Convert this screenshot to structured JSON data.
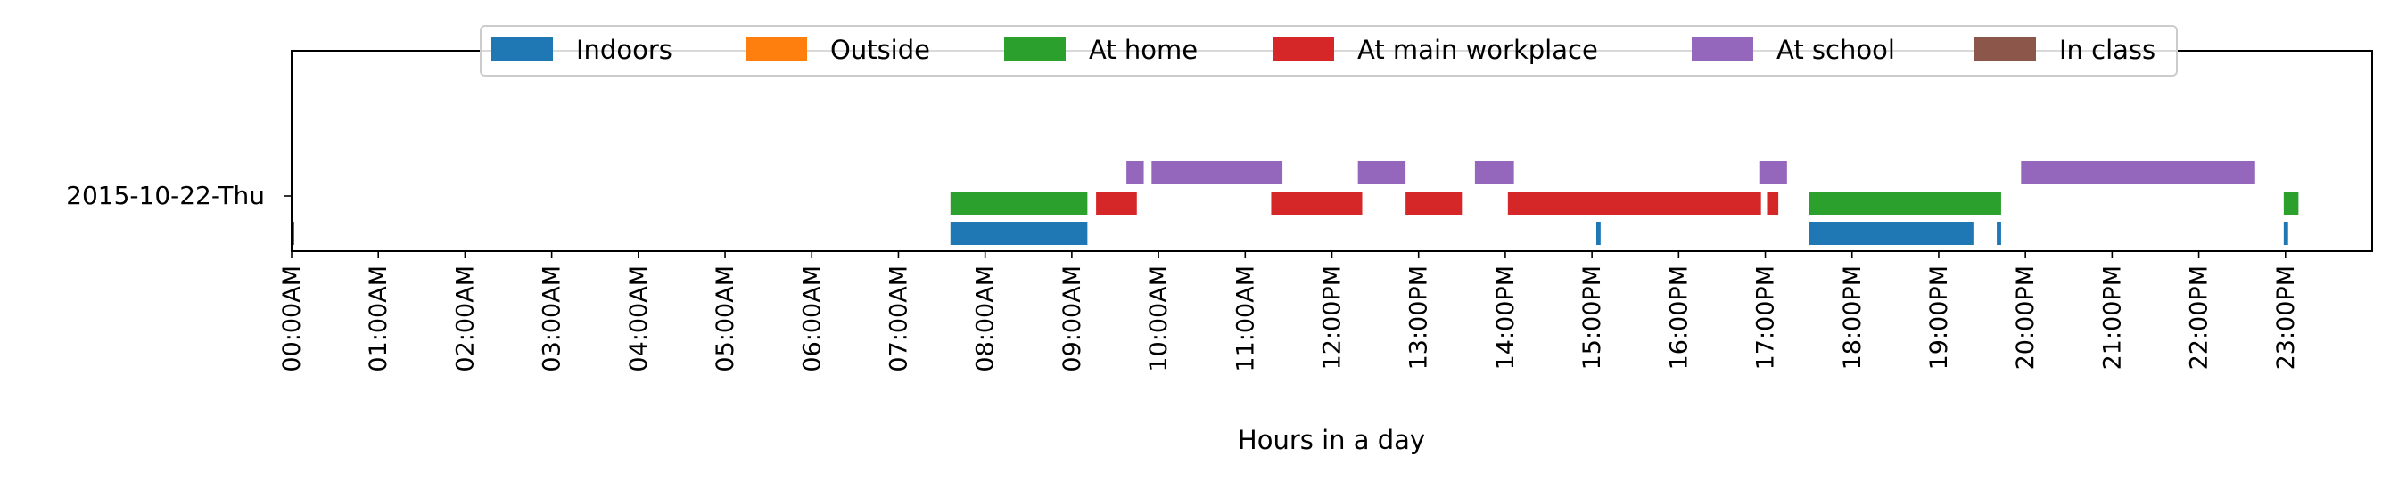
{
  "chart_data": {
    "type": "timeline",
    "xlabel": "Hours in a day",
    "xlim": [
      0,
      24
    ],
    "row_label": "2015-10-22-Thu",
    "x_ticks": [
      {
        "value": 0,
        "label": "00:00AM"
      },
      {
        "value": 1,
        "label": "01:00AM"
      },
      {
        "value": 2,
        "label": "02:00AM"
      },
      {
        "value": 3,
        "label": "03:00AM"
      },
      {
        "value": 4,
        "label": "04:00AM"
      },
      {
        "value": 5,
        "label": "05:00AM"
      },
      {
        "value": 6,
        "label": "06:00AM"
      },
      {
        "value": 7,
        "label": "07:00AM"
      },
      {
        "value": 8,
        "label": "08:00AM"
      },
      {
        "value": 9,
        "label": "09:00AM"
      },
      {
        "value": 10,
        "label": "10:00AM"
      },
      {
        "value": 11,
        "label": "11:00AM"
      },
      {
        "value": 12,
        "label": "12:00PM"
      },
      {
        "value": 13,
        "label": "13:00PM"
      },
      {
        "value": 14,
        "label": "14:00PM"
      },
      {
        "value": 15,
        "label": "15:00PM"
      },
      {
        "value": 16,
        "label": "16:00PM"
      },
      {
        "value": 17,
        "label": "17:00PM"
      },
      {
        "value": 18,
        "label": "18:00PM"
      },
      {
        "value": 19,
        "label": "19:00PM"
      },
      {
        "value": 20,
        "label": "20:00PM"
      },
      {
        "value": 21,
        "label": "21:00PM"
      },
      {
        "value": 22,
        "label": "22:00PM"
      },
      {
        "value": 23,
        "label": "23:00PM"
      }
    ],
    "legend_position": "top-center",
    "series": [
      {
        "name": "Indoors",
        "color": "#1f77b4",
        "lane": 0,
        "intervals": [
          [
            0.0,
            0.02
          ],
          [
            7.6,
            9.18
          ],
          [
            15.05,
            15.1
          ],
          [
            17.5,
            19.4
          ],
          [
            19.67,
            19.72
          ],
          [
            22.98,
            23.03
          ]
        ]
      },
      {
        "name": "Outside",
        "color": "#ff7f0e",
        "lane": 0,
        "intervals": []
      },
      {
        "name": "At home",
        "color": "#2ca02c",
        "lane": 1,
        "intervals": [
          [
            7.6,
            9.18
          ],
          [
            17.5,
            19.72
          ],
          [
            22.98,
            23.15
          ]
        ]
      },
      {
        "name": "At main workplace",
        "color": "#d62728",
        "lane": 1,
        "intervals": [
          [
            9.28,
            9.75
          ],
          [
            11.3,
            12.35
          ],
          [
            12.85,
            13.5
          ],
          [
            14.03,
            16.95
          ],
          [
            17.02,
            17.15
          ]
        ]
      },
      {
        "name": "At school",
        "color": "#9467bd",
        "lane": 2,
        "intervals": [
          [
            9.63,
            9.83
          ],
          [
            9.92,
            11.43
          ],
          [
            12.3,
            12.85
          ],
          [
            13.65,
            14.1
          ],
          [
            16.93,
            17.25
          ],
          [
            19.95,
            22.65
          ]
        ]
      },
      {
        "name": "In class",
        "color": "#8c564b",
        "lane": 2,
        "intervals": []
      }
    ]
  }
}
